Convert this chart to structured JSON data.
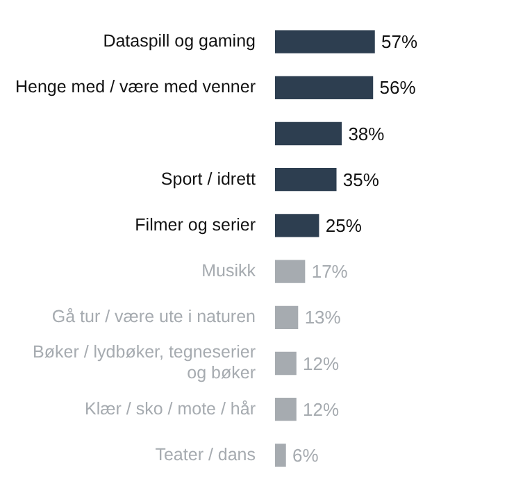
{
  "chart_data": {
    "type": "bar",
    "orientation": "horizontal",
    "categories": [
      "Dataspill og gaming",
      "Henge med / være med venner",
      null,
      "Sport / idrett",
      "Filmer og serier",
      "Musikk",
      "Gå tur / være ute i naturen",
      "Bøker / lydbøker, tegneserier og bøker",
      "Klær / sko / mote / hår",
      "Teater / dans"
    ],
    "values": [
      57,
      56,
      38,
      35,
      25,
      17,
      13,
      12,
      12,
      6
    ],
    "value_labels": [
      "57%",
      "56%",
      "38%",
      "35%",
      "25%",
      "17%",
      "13%",
      "12%",
      "12%",
      "6%"
    ],
    "colors": [
      "#2d3e50",
      "#2d3e50",
      "#2d3e50",
      "#2d3e50",
      "#2d3e50",
      "#a6abb0",
      "#a6abb0",
      "#a6abb0",
      "#a6abb0",
      "#a6abb0"
    ],
    "legend": false
  }
}
